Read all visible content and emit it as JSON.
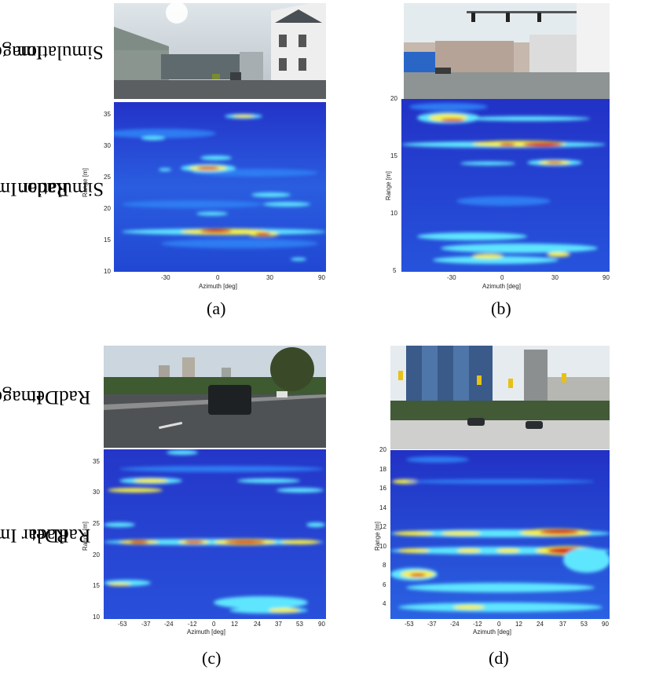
{
  "row_labels": {
    "image_sim": [
      "Image",
      "Simulation"
    ],
    "radar_sim": [
      "Radar Image",
      "Simulation"
    ],
    "image_raddet": [
      "Image",
      "RadDet"
    ],
    "radar_raddet": [
      "Radar Image",
      "RadDet"
    ]
  },
  "captions": {
    "a": "(a)",
    "b": "(b)",
    "c": "(c)",
    "d": "(d)"
  },
  "colors": {
    "low": "#1f3fd6",
    "mid": "#2aa0ff",
    "cyan": "#5fe6ff",
    "yellow": "#f4f04a",
    "red": "#d8151a"
  },
  "panels": {
    "a": {
      "ylabel": "Range [m]",
      "xlabel": "Azimuth [deg]",
      "yticks": [
        "35",
        "30",
        "25",
        "20",
        "15",
        "10"
      ],
      "xticks": [
        "-30",
        "0",
        "30",
        "90"
      ]
    },
    "b": {
      "ylabel": "Range [m]",
      "xlabel": "Azimuth [deg]",
      "yticks": [
        "20",
        "15",
        "10",
        "5"
      ],
      "xticks": [
        "-30",
        "0",
        "30",
        "90"
      ]
    },
    "c": {
      "ylabel": "Range [m]",
      "xlabel": "Azimuth [deg]",
      "yticks": [
        "35",
        "30",
        "25",
        "20",
        "15",
        "10"
      ],
      "xticks": [
        "-53",
        "-37",
        "-24",
        "-12",
        "0",
        "12",
        "24",
        "37",
        "53",
        "90"
      ]
    },
    "d": {
      "ylabel": "Range [m]",
      "xlabel": "Azimuth [deg]",
      "yticks": [
        "20",
        "18",
        "16",
        "14",
        "12",
        "10",
        "8",
        "6",
        "4"
      ],
      "xticks": [
        "-53",
        "-37",
        "-24",
        "-12",
        "0",
        "12",
        "24",
        "37",
        "53",
        "90"
      ]
    }
  }
}
